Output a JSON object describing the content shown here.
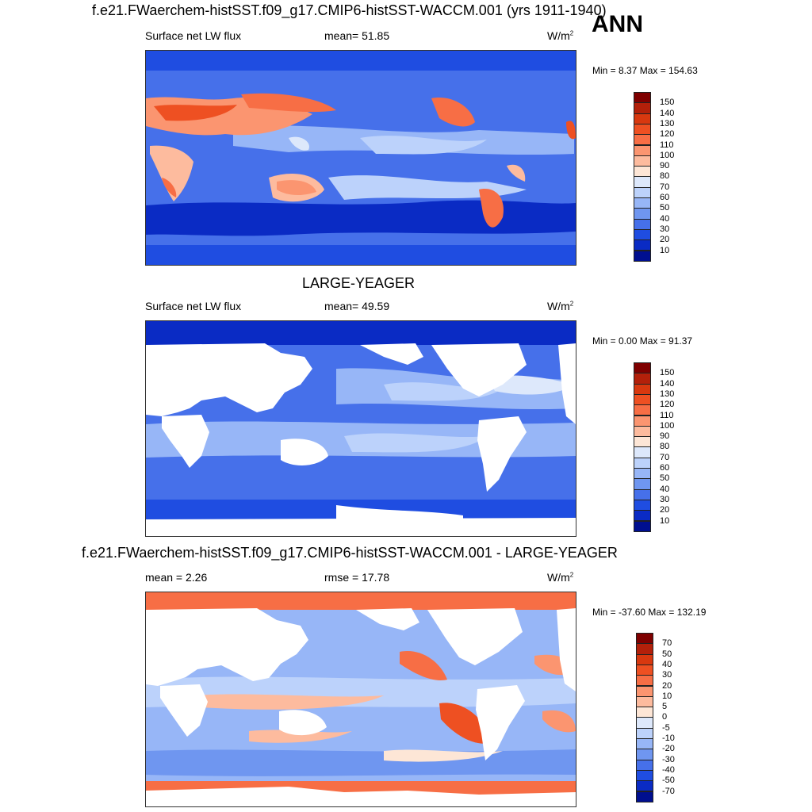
{
  "season": "ANN",
  "panels": [
    {
      "title": "f.e21.FWaerchem-histSST.f09_g17.CMIP6-histSST-WACCM.001 (yrs 1911-1940)",
      "left_label": "Surface net LW flux",
      "center_label": "mean=  51.85",
      "units": "W/m",
      "units_sup": "2",
      "minmax": "Min =   8.37 Max = 154.63",
      "colorbar_labels": [
        "150",
        "140",
        "130",
        "120",
        "110",
        "100",
        "90",
        "80",
        "70",
        "60",
        "50",
        "40",
        "30",
        "20",
        "10"
      ]
    },
    {
      "title": "LARGE-YEAGER",
      "left_label": "Surface net LW flux",
      "center_label": "mean=  49.59",
      "units": "W/m",
      "units_sup": "2",
      "minmax": "Min =   0.00 Max =  91.37",
      "colorbar_labels": [
        "150",
        "140",
        "130",
        "120",
        "110",
        "100",
        "90",
        "80",
        "70",
        "60",
        "50",
        "40",
        "30",
        "20",
        "10"
      ]
    },
    {
      "title": "f.e21.FWaerchem-histSST.f09_g17.CMIP6-histSST-WACCM.001 - LARGE-YEAGER",
      "left_label": "mean =   2.26",
      "center_label": "rmse =  17.78",
      "units": "W/m",
      "units_sup": "2",
      "minmax": "Min = -37.60 Max = 132.19",
      "colorbar_labels": [
        "70",
        "50",
        "40",
        "30",
        "20",
        "10",
        "5",
        "0",
        "-5",
        "-10",
        "-20",
        "-30",
        "-40",
        "-50",
        "-70"
      ]
    }
  ],
  "colors": {
    "scale": [
      "#7f0000",
      "#b3200a",
      "#d8380f",
      "#ee5022",
      "#f76e45",
      "#fb9570",
      "#fdbb9e",
      "#fde6d6",
      "#dde8fb",
      "#bcd2fb",
      "#97b6f7",
      "#6f96f0",
      "#4670ea",
      "#1f4de1",
      "#0a2bc4",
      "#000f8f"
    ],
    "land": "#ffffff"
  }
}
